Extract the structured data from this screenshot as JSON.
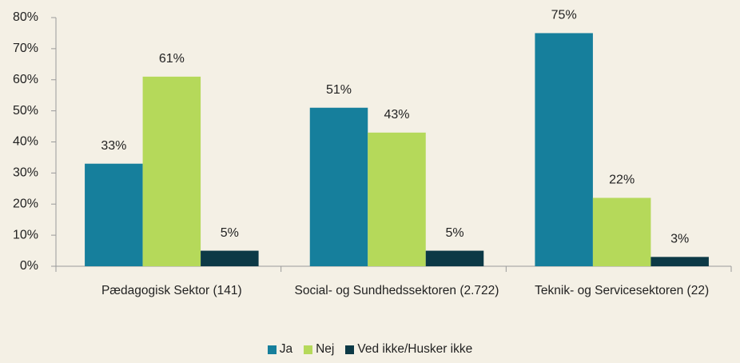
{
  "chart_data": {
    "type": "bar",
    "categories": [
      "Pædagogisk Sektor (141)",
      "Social- og Sundhedssektoren (2.722)",
      "Teknik- og Servicesektoren (22)"
    ],
    "series": [
      {
        "name": "Ja",
        "color": "#167f9c",
        "values": [
          33,
          51,
          75
        ],
        "value_labels": [
          "33%",
          "51%",
          "75%"
        ]
      },
      {
        "name": "Nej",
        "color": "#b5d95a",
        "values": [
          61,
          43,
          22
        ],
        "value_labels": [
          "61%",
          "43%",
          "22%"
        ]
      },
      {
        "name": "Ved ikke/Husker ikke",
        "color": "#0c3946",
        "values": [
          5,
          5,
          3
        ],
        "value_labels": [
          "5%",
          "5%",
          "3%"
        ]
      }
    ],
    "ylim": [
      0,
      80
    ],
    "yticks": [
      {
        "value": 0,
        "label": "0%"
      },
      {
        "value": 10,
        "label": "10%"
      },
      {
        "value": 20,
        "label": "20%"
      },
      {
        "value": 30,
        "label": "30%"
      },
      {
        "value": 40,
        "label": "40%"
      },
      {
        "value": 50,
        "label": "50%"
      },
      {
        "value": 60,
        "label": "60%"
      },
      {
        "value": 70,
        "label": "70%"
      },
      {
        "value": 80,
        "label": "80%"
      }
    ],
    "grid": false,
    "legend": "bottom"
  }
}
